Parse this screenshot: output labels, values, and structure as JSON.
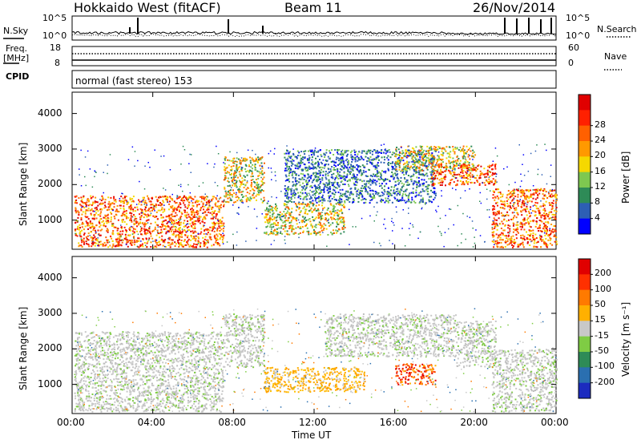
{
  "header": {
    "title": "Hokkaido West (fitACF)",
    "beam": "Beam 11",
    "date": "26/Nov/2014"
  },
  "top_panel": {
    "nsky_label": "N.Sky",
    "nsky_hi": "10^5",
    "nsky_lo": "10^0",
    "nsearch_label": "N.Search",
    "nsearch_hi": "10^5",
    "nsearch_lo": "10^0",
    "freq_label_1": "Freq.",
    "freq_label_2": "[MHz]",
    "freq_hi": "18",
    "freq_lo": "8",
    "nave_hi": "60",
    "nave_lo": "0",
    "nave_label": "Nave",
    "cpid_label": "CPID",
    "cpid_text": "normal (fast stereo) 153"
  },
  "chart_data": [
    {
      "type": "heatmap",
      "name": "power",
      "ylabel": "Slant Range [km]",
      "y_ticks": [
        "1000",
        "2000",
        "3000",
        "4000"
      ],
      "ylim": [
        180,
        4600
      ],
      "xlim": [
        0,
        24
      ],
      "colorbar_label": "Power [dB]",
      "colorbar_ticks": [
        "4",
        "8",
        "12",
        "16",
        "20",
        "24",
        "28"
      ],
      "colorbar_colors": [
        "#0000ff",
        "#2d5fb4",
        "#2e8b57",
        "#7ec850",
        "#f5d800",
        "#ff9900",
        "#ff6000",
        "#ff2000",
        "#e00000"
      ],
      "regions": [
        {
          "t0": 0.1,
          "t1": 7.5,
          "r0": 250,
          "r1": 1700,
          "level": "high"
        },
        {
          "t0": 7.5,
          "t1": 9.5,
          "r0": 1500,
          "r1": 2800,
          "level": "mid"
        },
        {
          "t0": 9.5,
          "t1": 13.5,
          "r0": 600,
          "r1": 1500,
          "level": "mid"
        },
        {
          "t0": 10.5,
          "t1": 18,
          "r0": 1500,
          "r1": 3000,
          "level": "low"
        },
        {
          "t0": 16,
          "t1": 20,
          "r0": 2400,
          "r1": 3100,
          "level": "mid"
        },
        {
          "t0": 17.8,
          "t1": 21,
          "r0": 2000,
          "r1": 2600,
          "level": "high"
        },
        {
          "t0": 20.8,
          "t1": 24,
          "r0": 250,
          "r1": 1900,
          "level": "high"
        }
      ]
    },
    {
      "type": "heatmap",
      "name": "velocity",
      "ylabel": "Slant Range [km]",
      "y_ticks": [
        "1000",
        "2000",
        "3000",
        "4000"
      ],
      "ylim": [
        180,
        4600
      ],
      "xlim": [
        0,
        24
      ],
      "colorbar_label": "Velocity [m s⁻¹]",
      "colorbar_ticks": [
        "200",
        "100",
        "50",
        "15",
        "-15",
        "-50",
        "-100",
        "-200"
      ],
      "colorbar_colors": [
        "#1c2bbf",
        "#2a6fb0",
        "#2e8b57",
        "#7fcc44",
        "#c8c8c8",
        "#ffb000",
        "#ff7a00",
        "#ff3000",
        "#e00000"
      ],
      "regions": [
        {
          "t0": 0.1,
          "t1": 7.5,
          "r0": 250,
          "r1": 2500,
          "level": "grey"
        },
        {
          "t0": 7.5,
          "t1": 9.5,
          "r0": 1500,
          "r1": 3000,
          "level": "grey"
        },
        {
          "t0": 9.5,
          "t1": 14.5,
          "r0": 800,
          "r1": 1500,
          "level": "orange"
        },
        {
          "t0": 12.5,
          "t1": 19,
          "r0": 1800,
          "r1": 3000,
          "level": "grey"
        },
        {
          "t0": 16,
          "t1": 18,
          "r0": 1000,
          "r1": 1600,
          "level": "red"
        },
        {
          "t0": 19,
          "t1": 21,
          "r0": 1500,
          "r1": 2800,
          "level": "grey"
        },
        {
          "t0": 20.8,
          "t1": 24,
          "r0": 250,
          "r1": 2000,
          "level": "grey"
        }
      ]
    }
  ],
  "x_axis": {
    "xlabel": "Time UT",
    "ticks": [
      "00:00",
      "04:00",
      "08:00",
      "12:00",
      "16:00",
      "20:00",
      "00:00"
    ]
  }
}
